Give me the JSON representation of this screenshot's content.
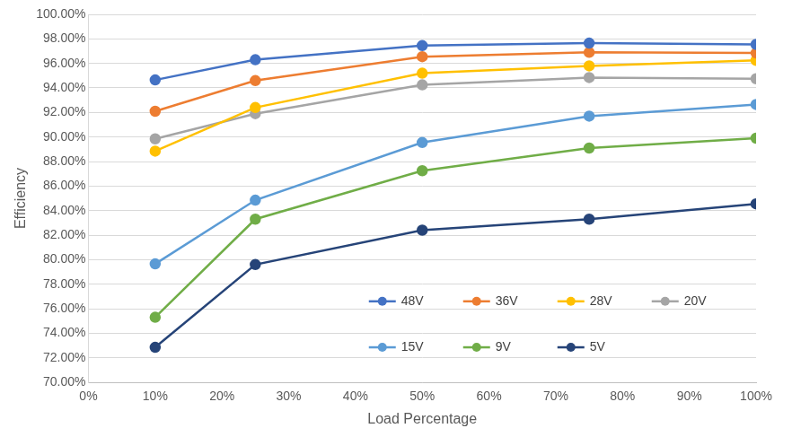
{
  "chart_data": {
    "type": "line",
    "x_label": "Load Percentage",
    "y_label": "Efficiency",
    "x": [
      10,
      25,
      50,
      75,
      100
    ],
    "series": [
      {
        "name": "48V",
        "color": "#4472c4",
        "values": [
          94.65,
          96.3,
          97.45,
          97.65,
          97.55
        ]
      },
      {
        "name": "36V",
        "color": "#ed7d31",
        "values": [
          92.1,
          94.6,
          96.55,
          96.9,
          96.85
        ]
      },
      {
        "name": "28V",
        "color": "#ffc000",
        "values": [
          88.85,
          92.4,
          95.2,
          95.8,
          96.25
        ]
      },
      {
        "name": "20V",
        "color": "#a5a5a5",
        "values": [
          89.85,
          91.9,
          94.25,
          94.85,
          94.75
        ]
      },
      {
        "name": "15V",
        "color": "#5b9bd5",
        "values": [
          79.65,
          84.85,
          89.55,
          91.7,
          92.65
        ]
      },
      {
        "name": "9V",
        "color": "#70ad47",
        "values": [
          75.3,
          83.3,
          87.25,
          89.1,
          89.9
        ]
      },
      {
        "name": "5V",
        "color": "#264478",
        "values": [
          72.85,
          79.6,
          82.4,
          83.3,
          84.55
        ]
      }
    ],
    "xlim": [
      0,
      100
    ],
    "xticks": [
      {
        "value": 0,
        "label": "0%"
      },
      {
        "value": 10,
        "label": "10%"
      },
      {
        "value": 20,
        "label": "20%"
      },
      {
        "value": 30,
        "label": "30%"
      },
      {
        "value": 40,
        "label": "40%"
      },
      {
        "value": 50,
        "label": "50%"
      },
      {
        "value": 60,
        "label": "60%"
      },
      {
        "value": 70,
        "label": "70%"
      },
      {
        "value": 80,
        "label": "80%"
      },
      {
        "value": 90,
        "label": "90%"
      },
      {
        "value": 100,
        "label": "100%"
      }
    ],
    "ylim": [
      70,
      100
    ],
    "yticks": [
      {
        "value": 70,
        "label": "70.00%"
      },
      {
        "value": 72,
        "label": "72.00%"
      },
      {
        "value": 74,
        "label": "74.00%"
      },
      {
        "value": 76,
        "label": "76.00%"
      },
      {
        "value": 78,
        "label": "78.00%"
      },
      {
        "value": 80,
        "label": "80.00%"
      },
      {
        "value": 82,
        "label": "82.00%"
      },
      {
        "value": 84,
        "label": "84.00%"
      },
      {
        "value": 86,
        "label": "86.00%"
      },
      {
        "value": 88,
        "label": "88.00%"
      },
      {
        "value": 90,
        "label": "90.00%"
      },
      {
        "value": 92,
        "label": "92.00%"
      },
      {
        "value": 94,
        "label": "94.00%"
      },
      {
        "value": 96,
        "label": "96.00%"
      },
      {
        "value": 98,
        "label": "98.00%"
      },
      {
        "value": 100,
        "label": "100.00%"
      }
    ],
    "grid": "y",
    "legend": "bottom-right",
    "marker": "circle"
  }
}
